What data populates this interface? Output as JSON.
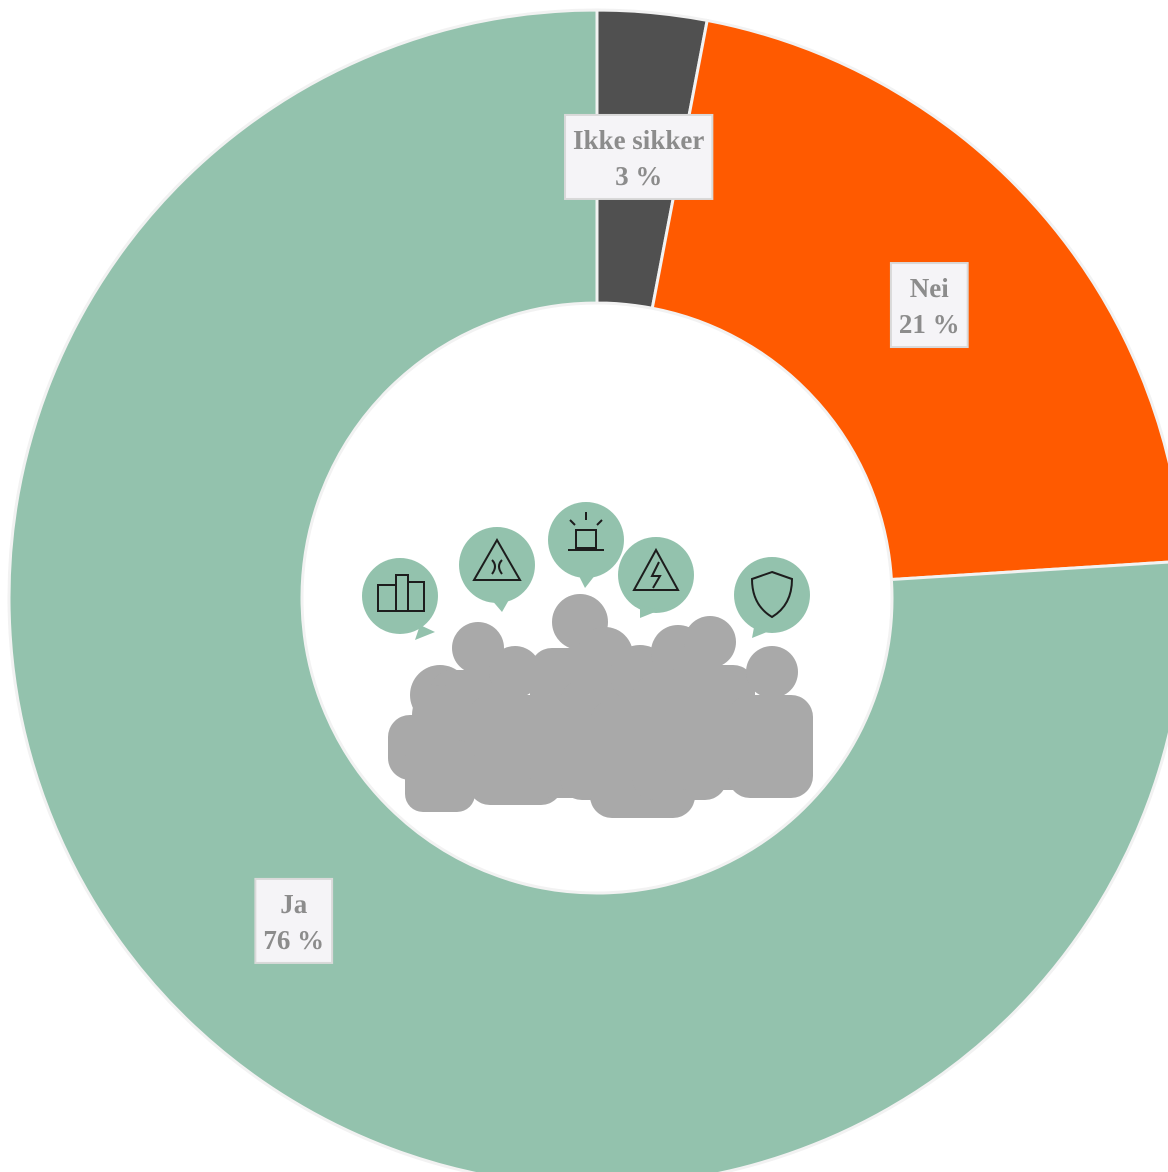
{
  "chart_data": {
    "type": "donut",
    "categories": [
      "Ikke sikker",
      "Nei",
      "Ja"
    ],
    "values": [
      3,
      21,
      76
    ],
    "value_labels": [
      "3 %",
      "21 %",
      "76 %"
    ],
    "colors": [
      "#505050",
      "#ff5a00",
      "#93c2ad"
    ]
  }
}
